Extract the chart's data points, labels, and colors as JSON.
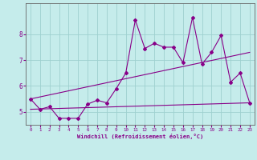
{
  "xlabel": "Windchill (Refroidissement éolien,°C)",
  "background_color": "#c5eceb",
  "grid_color": "#9ed0cf",
  "line_color": "#880088",
  "x_values": [
    0,
    1,
    2,
    3,
    4,
    5,
    6,
    7,
    8,
    9,
    10,
    11,
    12,
    13,
    14,
    15,
    16,
    17,
    18,
    19,
    20,
    21,
    22,
    23
  ],
  "y_jagged": [
    5.5,
    5.1,
    5.2,
    4.75,
    4.75,
    4.75,
    5.3,
    5.45,
    5.35,
    5.9,
    6.5,
    8.55,
    7.45,
    7.65,
    7.5,
    7.5,
    6.9,
    8.65,
    6.85,
    7.3,
    7.95,
    6.15,
    6.5,
    5.35
  ],
  "y_trend_upper_start": 5.5,
  "y_trend_upper_end": 7.3,
  "y_trend_lower_start": 5.1,
  "y_trend_lower_end": 5.35,
  "ylim": [
    4.5,
    9.2
  ],
  "yticks": [
    5,
    6,
    7,
    8
  ],
  "xticks": [
    0,
    1,
    2,
    3,
    4,
    5,
    6,
    7,
    8,
    9,
    10,
    11,
    12,
    13,
    14,
    15,
    16,
    17,
    18,
    19,
    20,
    21,
    22,
    23
  ],
  "xlim": [
    -0.5,
    23.5
  ]
}
